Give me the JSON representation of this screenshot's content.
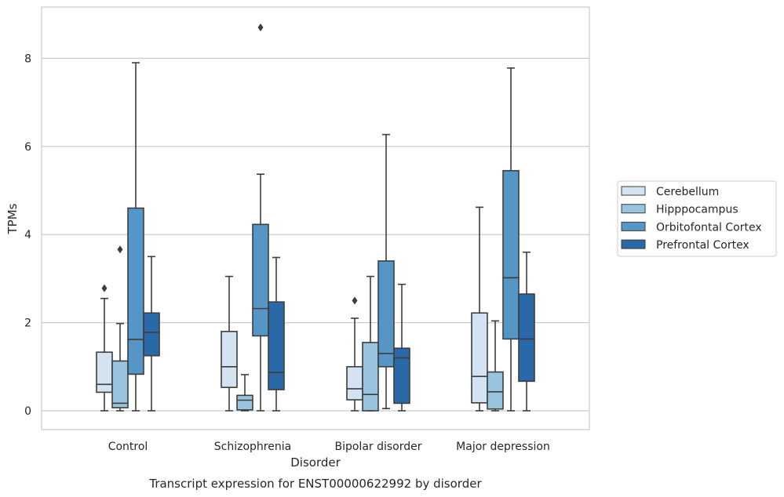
{
  "chart_data": {
    "type": "box",
    "title": "",
    "caption": "Transcript expression for ENST00000622992 by disorder",
    "xlabel": "Disorder",
    "ylabel": "TPMs",
    "ylim": [
      -0.4,
      9.3
    ],
    "yticks": [
      0,
      2,
      4,
      6,
      8
    ],
    "grid": true,
    "legend_position": "right",
    "categories": [
      "Control",
      "Schizophrenia",
      "Bipolar disorder",
      "Major depression"
    ],
    "series": [
      {
        "name": "Cerebellum",
        "color": "#d4e3f1",
        "boxes": [
          {
            "whisker_low": 0,
            "q1": 0.42,
            "median": 0.6,
            "q3": 1.33,
            "whisker_high": 2.55,
            "outliers": [
              2.78
            ]
          },
          {
            "whisker_low": 0,
            "q1": 0.53,
            "median": 1.0,
            "q3": 1.8,
            "whisker_high": 3.05,
            "outliers": []
          },
          {
            "whisker_low": 0,
            "q1": 0.25,
            "median": 0.5,
            "q3": 1.0,
            "whisker_high": 2.1,
            "outliers": [
              2.5
            ]
          },
          {
            "whisker_low": 0,
            "q1": 0.18,
            "median": 0.78,
            "q3": 2.22,
            "whisker_high": 4.62,
            "outliers": []
          }
        ]
      },
      {
        "name": "Hipppocampus",
        "color": "#99c4e0",
        "boxes": [
          {
            "whisker_low": 0,
            "q1": 0.07,
            "median": 0.17,
            "q3": 1.13,
            "whisker_high": 1.98,
            "outliers": [
              3.66
            ]
          },
          {
            "whisker_low": 0,
            "q1": 0.02,
            "median": 0.24,
            "q3": 0.35,
            "whisker_high": 0.82,
            "outliers": []
          },
          {
            "whisker_low": 0,
            "q1": 0.0,
            "median": 0.37,
            "q3": 1.55,
            "whisker_high": 3.05,
            "outliers": []
          },
          {
            "whisker_low": 0,
            "q1": 0.04,
            "median": 0.43,
            "q3": 0.88,
            "whisker_high": 2.04,
            "outliers": []
          }
        ]
      },
      {
        "name": "Orbitofontal Cortex",
        "color": "#5596c6",
        "boxes": [
          {
            "whisker_low": 0,
            "q1": 0.83,
            "median": 1.62,
            "q3": 4.6,
            "whisker_high": 7.9,
            "outliers": []
          },
          {
            "whisker_low": 0,
            "q1": 1.7,
            "median": 2.32,
            "q3": 4.23,
            "whisker_high": 5.37,
            "outliers": [
              8.7
            ]
          },
          {
            "whisker_low": 0.05,
            "q1": 1.0,
            "median": 1.3,
            "q3": 3.4,
            "whisker_high": 6.27,
            "outliers": []
          },
          {
            "whisker_low": 0,
            "q1": 1.63,
            "median": 3.02,
            "q3": 5.45,
            "whisker_high": 7.78,
            "outliers": []
          }
        ]
      },
      {
        "name": "Prefrontal Cortex",
        "color": "#2a68a7",
        "boxes": [
          {
            "whisker_low": 0,
            "q1": 1.25,
            "median": 1.78,
            "q3": 2.22,
            "whisker_high": 3.5,
            "outliers": []
          },
          {
            "whisker_low": 0,
            "q1": 0.48,
            "median": 0.87,
            "q3": 2.47,
            "whisker_high": 3.48,
            "outliers": []
          },
          {
            "whisker_low": 0,
            "q1": 0.17,
            "median": 1.2,
            "q3": 1.42,
            "whisker_high": 2.87,
            "outliers": []
          },
          {
            "whisker_low": 0,
            "q1": 0.67,
            "median": 1.63,
            "q3": 2.65,
            "whisker_high": 3.6,
            "outliers": []
          }
        ]
      }
    ]
  }
}
